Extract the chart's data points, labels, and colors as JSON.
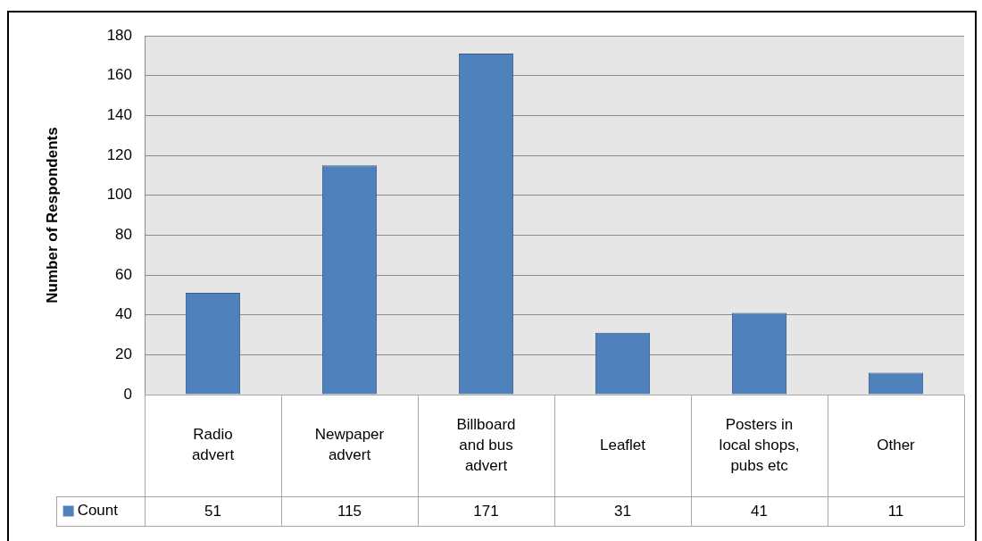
{
  "chart_data": {
    "type": "bar",
    "ylabel": "Number of Respondents",
    "categories": [
      "Radio advert",
      "Newpaper advert",
      "Billboard and bus advert",
      "Leaflet",
      "Posters in local shops, pubs etc",
      "Other"
    ],
    "series": [
      {
        "name": "Count",
        "color": "#4f81bd",
        "values": [
          51,
          115,
          171,
          31,
          41,
          11
        ]
      }
    ],
    "ylim": [
      0,
      180
    ],
    "yticks": [
      0,
      20,
      40,
      60,
      80,
      100,
      120,
      140,
      160,
      180
    ],
    "grid": "y",
    "legend": "bottom",
    "data_labels": true
  }
}
